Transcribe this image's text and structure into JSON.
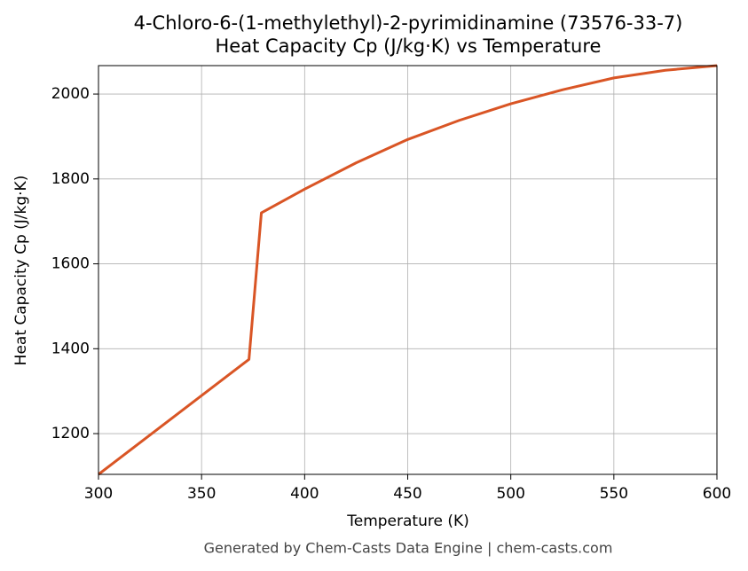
{
  "chart_data": {
    "type": "line",
    "title": "4-Chloro-6-(1-methylethyl)-2-pyrimidinamine (73576-33-7)",
    "subtitle": "Heat Capacity Cp (J/kg·K) vs Temperature",
    "x_label": "Temperature (K)",
    "y_label": "Heat Capacity Cp (J/kg·K)",
    "footer": "Generated by Chem-Casts Data Engine | chem-casts.com",
    "x": [
      300,
      373,
      379,
      400,
      425,
      450,
      475,
      500,
      525,
      550,
      575,
      600
    ],
    "series": [
      {
        "name": "Cp",
        "color": "#d95525",
        "values": [
          1104,
          1375,
          1720,
          1776,
          1838,
          1893,
          1938,
          1977,
          2010,
          2038,
          2056,
          2067
        ]
      }
    ],
    "xlim": [
      300,
      600
    ],
    "xticks": [
      300,
      350,
      400,
      450,
      500,
      550,
      600
    ],
    "ylim": [
      1104,
      2067
    ],
    "yticks": [
      1200,
      1400,
      1600,
      1800,
      2000
    ],
    "grid": true
  }
}
